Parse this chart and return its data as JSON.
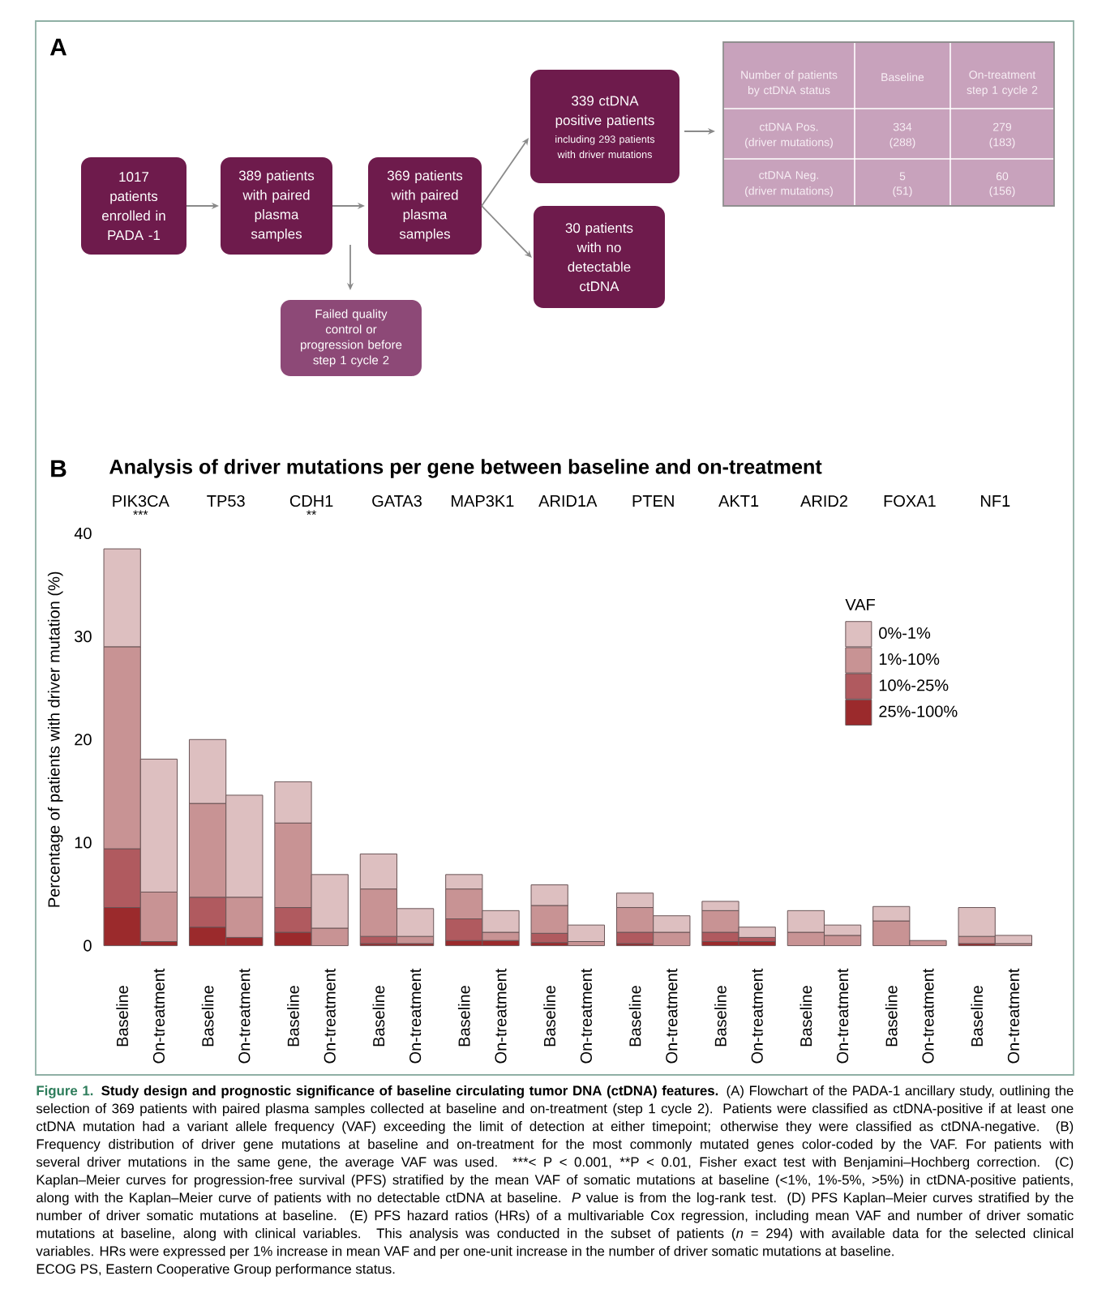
{
  "chart_data": [
    {
      "type": "other",
      "annotations": [
        "A",
        "1017 patients enrolled in PADA -1",
        "389 patients with paired plasma samples",
        "369 patients with paired plasma samples",
        "Failed quality control or progression before step 1 cycle 2",
        "339 ctDNA positive patients",
        "including 293 patients with driver mutations",
        "30 patients with no detectable ctDNA",
        "Number of patients by ctDNA status",
        "Baseline",
        "On-treatment step 1 cycle 2",
        "ctDNA Pos.",
        "(driver mutations)",
        "334",
        "(288)",
        "279",
        "(183)",
        "ctDNA Neg.",
        "(driver mutations)",
        "5",
        "(51)",
        "60",
        "(156)"
      ]
    },
    {
      "type": "bar",
      "title": "Analysis of driver mutations per gene between baseline and on-treatment",
      "ylabel": "Percentage of patients with driver mutation (%)",
      "categories": [
        "Baseline",
        "On-treatment",
        "Baseline",
        "On-treatment",
        "Baseline",
        "On-treatment",
        "Baseline",
        "On-treatment",
        "Baseline",
        "On-treatment",
        "Baseline",
        "On-treatment",
        "Baseline",
        "On-treatment",
        "Baseline",
        "On-treatment",
        "Baseline",
        "On-treatment",
        "Baseline",
        "On-treatment",
        "Baseline",
        "On-treatment"
      ],
      "series": [
        {
          "name": "25%-100%",
          "color": "#9b2a2c",
          "values": [
            3.7,
            0.4,
            1.8,
            0.8,
            1.3,
            null,
            0.2,
            0.2,
            0.5,
            0.5,
            0.3,
            null,
            0.2,
            null,
            0.4,
            0.4,
            null,
            null,
            null,
            null,
            0.2,
            null
          ]
        },
        {
          "name": "10%-25%",
          "color": "#b05a5f",
          "values": [
            5.7,
            null,
            2.9,
            null,
            2.4,
            null,
            0.7,
            null,
            2.1,
            null,
            0.9,
            null,
            1.1,
            null,
            0.9,
            0.4,
            null,
            null,
            null,
            null,
            null,
            null
          ]
        },
        {
          "name": "1%-10%",
          "color": "#c89394",
          "values": [
            19.6,
            4.8,
            9.1,
            3.9,
            8.2,
            1.7,
            4.6,
            0.7,
            2.9,
            0.8,
            2.7,
            0.4,
            2.4,
            1.3,
            2.1,
            null,
            1.3,
            1.0,
            2.4,
            0.5,
            0.7,
            0.2
          ]
        },
        {
          "name": "0%-1%",
          "color": "#ddbfc0",
          "values": [
            9.5,
            12.9,
            6.2,
            9.9,
            4.0,
            5.2,
            3.4,
            2.7,
            1.4,
            2.1,
            2.0,
            1.6,
            1.4,
            1.6,
            0.9,
            1.0,
            2.1,
            1.0,
            1.4,
            null,
            2.8,
            0.8
          ]
        }
      ],
      "stacked": true,
      "ylim": [
        0,
        40
      ],
      "yticks": [
        0,
        10,
        20,
        30,
        40
      ],
      "legend": "top right",
      "legend_title": "VAF",
      "annotations": [
        "B",
        "PIK3CA",
        "TP53",
        "CDH1",
        "GATA3",
        "MAP3K1",
        "ARID1A",
        "PTEN",
        "AKT1",
        "ARID2",
        "FOXA1",
        "NF1",
        "***",
        "**",
        "Figure 1.",
        "**Study design and prognostic significance of baseline circulating tumor DNA (ctDNA) features.** (A) Flowchart of the PADA-1 ancillary study, outlining the",
        "selection of 369 patients with paired plasma samples collected at baseline and on-treatment (step 1 cycle 2). Patients were classified as ctDNA-positive if at least one",
        "ctDNA mutation had a variant allele frequency (VAF) exceeding the limit of detection at either timepoint; otherwise they were classified as ctDNA-negative. (B)",
        "Frequency distribution of driver gene mutations at baseline and on-treatment for the most commonly mutated genes color-coded by the VAF. For patients with",
        "several driver mutations in the same gene, the average VAF was used. ***< P < 0.001, **P < 0.01, Fisher exact test with Benjamini–Hochberg correction. (C)",
        "Kaplan–Meier curves for progression-free survival (PFS) stratified by the mean VAF of somatic mutations at baseline (<1%, 1%-5%, >5%) in ctDNA-positive patients,",
        "along with the Kaplan–Meier curve of patients with no detectable ctDNA at baseline. *P* value is from the log-rank test. (D) PFS Kaplan–Meier curves stratified by the",
        "number of driver somatic mutations at baseline. (E) PFS hazard ratios (HRs) of a multivariable Cox regression, including mean VAF and number of driver somatic",
        "mutations at baseline, along with clinical variables. This analysis was conducted in the subset of patients (*n* = 294) with available data for the selected clinical",
        "variables. HRs were expressed per 1% increase in mean VAF and per one-unit increase in the number of driver somatic mutations at baseline.",
        "ECOG PS, Eastern Cooperative Group performance status."
      ]
    }
  ]
}
